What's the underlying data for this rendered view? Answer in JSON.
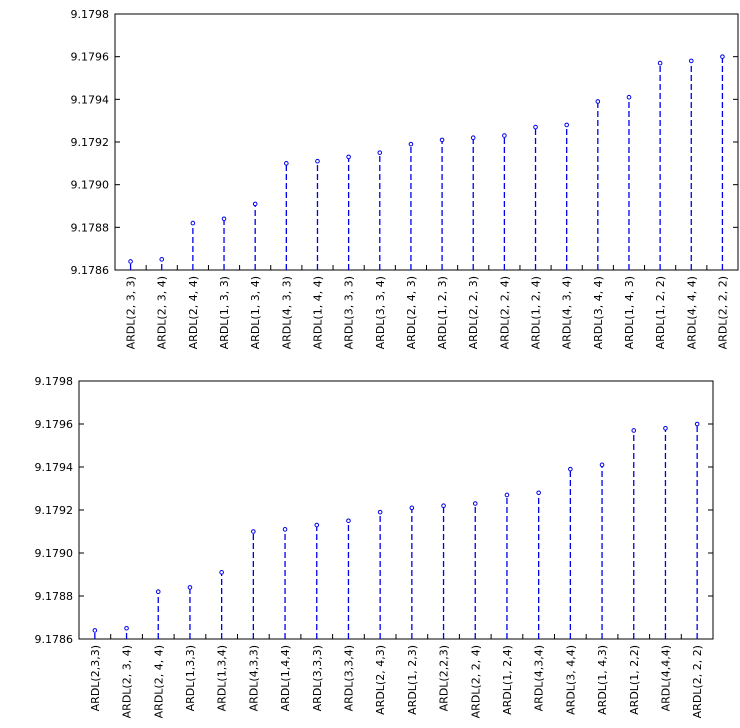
{
  "chart_data": [
    {
      "type": "line",
      "style": "dropline",
      "categories": [
        "ARDL(2, 3, 3)",
        "ARDL(2, 3, 4)",
        "ARDL(2, 4, 4)",
        "ARDL(1, 3, 3)",
        "ARDL(1, 3, 4)",
        "ARDL(4, 3, 3)",
        "ARDL(1, 4, 4)",
        "ARDL(3, 3, 3)",
        "ARDL(3, 3, 4)",
        "ARDL(2, 4, 3)",
        "ARDL(1, 2, 3)",
        "ARDL(2, 2, 3)",
        "ARDL(2, 2, 4)",
        "ARDL(1, 2, 4)",
        "ARDL(4, 3, 4)",
        "ARDL(3, 4, 4)",
        "ARDL(1, 4, 3)",
        "ARDL(1, 2, 2)",
        "ARDL(4, 4, 4)",
        "ARDL(2, 2, 2)"
      ],
      "values": [
        9.17864,
        9.17865,
        9.17882,
        9.17884,
        9.17891,
        9.1791,
        9.17911,
        9.17913,
        9.17915,
        9.17919,
        9.17921,
        9.17922,
        9.17923,
        9.17927,
        9.17928,
        9.17939,
        9.17941,
        9.17957,
        9.17958,
        9.1796
      ],
      "ytick_labels": [
        "9.1786",
        "9.1788",
        "9.1790",
        "9.1792",
        "9.1794",
        "9.1796",
        "9.1798"
      ],
      "ylim": [
        9.1786,
        9.1798
      ],
      "grid": false,
      "colors": {
        "series": "#0000ee",
        "axis": "#000000"
      }
    },
    {
      "type": "line",
      "style": "dropline",
      "categories": [
        "ARDL(2,3,3)",
        "ARDL(2, 3, 4)",
        "ARDL(2, 4, 4)",
        "ARDL(1,3,3)",
        "ARDL(1,3,4)",
        "ARDL(4,3,3)",
        "ARDL(1,4,4)",
        "ARDL(3,3,3)",
        "ARDL(3,3,4)",
        "ARDL(2, 4,3)",
        "ARDL(1, 2,3)",
        "ARDL(2,2,3)",
        "ARDL(2, 2, 4)",
        "ARDL(1, 2,4)",
        "ARDL(4,3,4)",
        "ARDL(3, 4,4)",
        "ARDL(1, 4,3)",
        "ARDL(1, 2,2)",
        "ARDL(4,4,4)",
        "ARDL(2, 2, 2)"
      ],
      "values": [
        9.17864,
        9.17865,
        9.17882,
        9.17884,
        9.17891,
        9.1791,
        9.17911,
        9.17913,
        9.17915,
        9.17919,
        9.17921,
        9.17922,
        9.17923,
        9.17927,
        9.17928,
        9.17939,
        9.17941,
        9.17957,
        9.17958,
        9.1796
      ],
      "ytick_labels": [
        "9.1786",
        "9.1788",
        "9.1790",
        "9.1792",
        "9.1794",
        "9.1796",
        "9.1798"
      ],
      "ylim": [
        9.1786,
        9.1798
      ],
      "grid": false,
      "colors": {
        "series": "#0000ee",
        "axis": "#000000"
      }
    }
  ]
}
